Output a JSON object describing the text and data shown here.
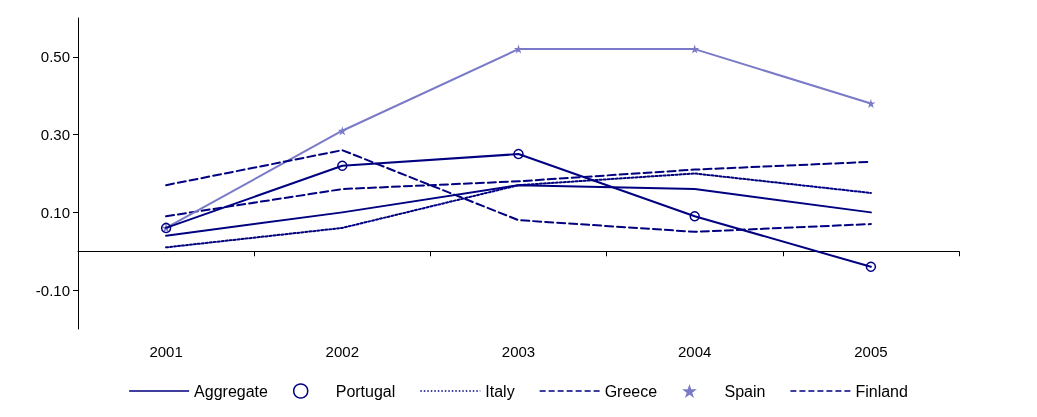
{
  "chart_data": {
    "type": "line",
    "categories": [
      "2001",
      "2002",
      "2003",
      "2004",
      "2005"
    ],
    "series": [
      {
        "name": "Aggregate",
        "color": "#000080",
        "values": [
          0.04,
          0.1,
          0.17,
          0.16,
          0.1
        ],
        "line_style": "solid",
        "marker": "none"
      },
      {
        "name": "Portugal",
        "color": "#000080",
        "values": [
          0.06,
          0.22,
          0.25,
          0.09,
          -0.04
        ],
        "line_style": "solid",
        "marker": "circle"
      },
      {
        "name": "Italy",
        "color": "#000080",
        "values": [
          0.01,
          0.06,
          0.17,
          0.2,
          0.15
        ],
        "line_style": "dotted",
        "marker": "none"
      },
      {
        "name": "Greece",
        "color": "#000080",
        "values": [
          0.09,
          0.16,
          0.18,
          0.21,
          0.23
        ],
        "line_style": "dashed",
        "marker": "none"
      },
      {
        "name": "Spain",
        "color": "#7a7ac8",
        "values": [
          0.06,
          0.31,
          0.52,
          0.52,
          0.38
        ],
        "line_style": "solid",
        "marker": "star"
      },
      {
        "name": "Finland",
        "color": "#000080",
        "values": [
          0.17,
          0.26,
          0.08,
          0.05,
          0.07
        ],
        "line_style": "dashed",
        "marker": "none"
      }
    ],
    "ylim": [
      -0.2,
      0.6
    ],
    "yticks": [
      {
        "value": -0.1,
        "label": "-0.10"
      },
      {
        "value": 0.1,
        "label": "0.10"
      },
      {
        "value": 0.3,
        "label": "0.30"
      },
      {
        "value": 0.5,
        "label": "0.50"
      }
    ],
    "grid": false,
    "legend": "bottom"
  }
}
